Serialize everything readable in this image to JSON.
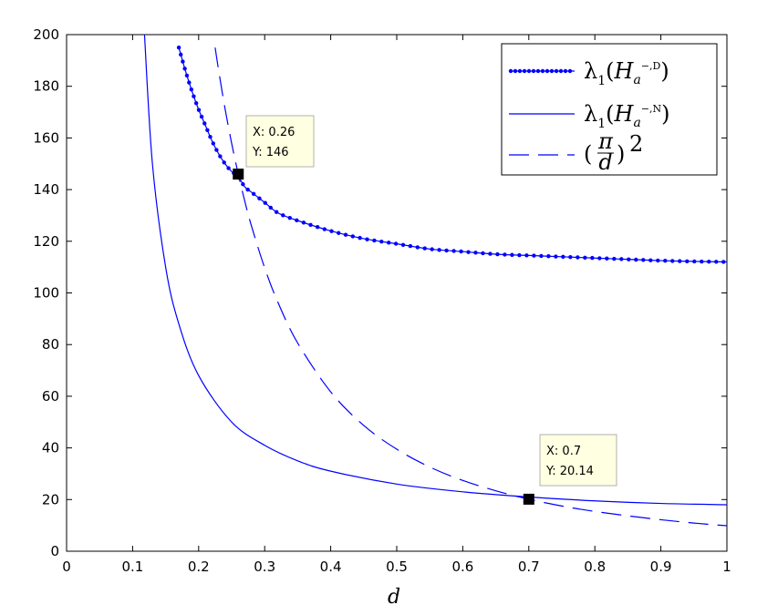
{
  "chart_data": {
    "type": "line",
    "xlabel": "d",
    "ylabel": "",
    "title": "",
    "xlim": [
      0,
      1
    ],
    "ylim": [
      0,
      200
    ],
    "xticks": [
      "0",
      "0.1",
      "0.2",
      "0.3",
      "0.4",
      "0.5",
      "0.6",
      "0.7",
      "0.8",
      "0.9",
      "1"
    ],
    "yticks": [
      "0",
      "20",
      "40",
      "60",
      "80",
      "100",
      "120",
      "140",
      "160",
      "180",
      "200"
    ],
    "grid": false,
    "legend_position": "top-right",
    "series": [
      {
        "name": "λ1(H_a^{-,D})",
        "style": "line-with-point-markers",
        "color": "#0000ff",
        "x": [
          0.17,
          0.18,
          0.19,
          0.2,
          0.21,
          0.22,
          0.23,
          0.24,
          0.25,
          0.26,
          0.27,
          0.28,
          0.3,
          0.32,
          0.35,
          0.4,
          0.45,
          0.5,
          0.55,
          0.6,
          0.65,
          0.7,
          0.75,
          0.8,
          0.85,
          0.9,
          0.95,
          1.0
        ],
        "y": [
          195,
          186,
          178,
          171,
          165,
          159,
          154,
          150,
          147,
          145,
          141,
          139,
          135,
          131,
          128,
          124,
          121,
          119,
          117,
          116,
          115,
          114.5,
          114,
          113.5,
          113,
          112.5,
          112.2,
          112
        ]
      },
      {
        "name": "λ1(H_a^{-,N})",
        "style": "solid",
        "color": "#0000ff",
        "x": [
          0.118,
          0.13,
          0.15,
          0.17,
          0.2,
          0.25,
          0.3,
          0.35,
          0.4,
          0.5,
          0.6,
          0.7,
          0.8,
          0.9,
          1.0
        ],
        "y": [
          200,
          150,
          110,
          88,
          68,
          50,
          41,
          35,
          31,
          26,
          23,
          21,
          19.5,
          18.5,
          18
        ]
      },
      {
        "name": "(π/d)²",
        "style": "dashed",
        "color": "#0000ff",
        "x": [
          0.225,
          0.23,
          0.24,
          0.25,
          0.26,
          0.27,
          0.28,
          0.3,
          0.32,
          0.35,
          0.4,
          0.45,
          0.5,
          0.55,
          0.6,
          0.65,
          0.7,
          0.75,
          0.8,
          0.85,
          0.9,
          0.95,
          1.0
        ],
        "y": [
          195,
          186.6,
          171.3,
          157.9,
          146,
          135.4,
          125.9,
          109.7,
          96.4,
          80.6,
          61.7,
          48.7,
          39.5,
          32.6,
          27.4,
          23.4,
          20.14,
          17.5,
          15.4,
          13.7,
          12.2,
          10.9,
          9.87
        ]
      }
    ],
    "datatips": [
      {
        "x": 0.26,
        "y": 146,
        "x_label": "X: 0.26",
        "y_label": "Y: 146"
      },
      {
        "x": 0.7,
        "y": 20.14,
        "x_label": "X: 0.7",
        "y_label": "Y: 20.14"
      }
    ]
  },
  "legend": {
    "entries": [
      {
        "lambda": "λ",
        "sub": "1",
        "open": "(",
        "H": "H",
        "a": "a",
        "sup": "−,D",
        "close": ")"
      },
      {
        "lambda": "λ",
        "sub": "1",
        "open": "(",
        "H": "H",
        "a": "a",
        "sup": "−,N",
        "close": ")"
      },
      {
        "open": "(",
        "num": "π",
        "den": "d",
        "close": ")",
        "pow": "2"
      }
    ]
  }
}
